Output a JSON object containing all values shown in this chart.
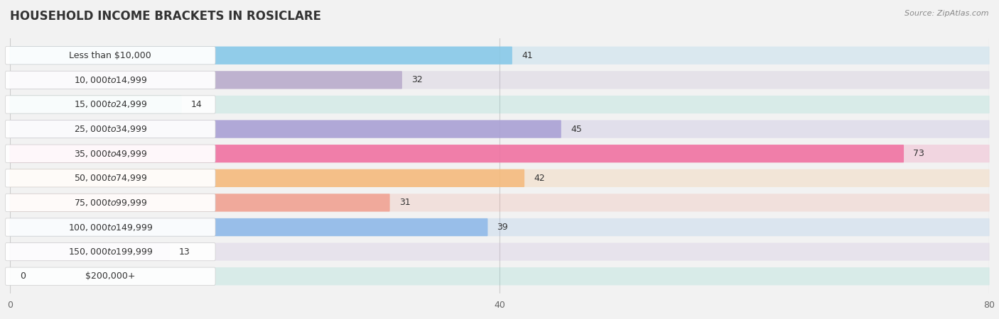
{
  "title": "HOUSEHOLD INCOME BRACKETS IN ROSICLARE",
  "source": "Source: ZipAtlas.com",
  "categories": [
    "Less than $10,000",
    "$10,000 to $14,999",
    "$15,000 to $24,999",
    "$25,000 to $34,999",
    "$35,000 to $49,999",
    "$50,000 to $74,999",
    "$75,000 to $99,999",
    "$100,000 to $149,999",
    "$150,000 to $199,999",
    "$200,000+"
  ],
  "values": [
    41,
    32,
    14,
    45,
    73,
    42,
    31,
    39,
    13,
    0
  ],
  "bar_colors": [
    "#85c8e8",
    "#b8aacb",
    "#7dd5c8",
    "#a89fd4",
    "#f06fa0",
    "#f5b97a",
    "#f0a090",
    "#8db8e8",
    "#c4afd8",
    "#7dd5c8"
  ],
  "bg_colors": [
    "#85c8e8",
    "#b8aacb",
    "#7dd5c8",
    "#a89fd4",
    "#f06fa0",
    "#f5b97a",
    "#f0a090",
    "#8db8e8",
    "#c4afd8",
    "#7dd5c8"
  ],
  "xlim": [
    0,
    80
  ],
  "xticks": [
    0,
    40,
    80
  ],
  "background_color": "#f0f0f0",
  "row_bg_color": "#e8e8e8",
  "bar_bg_alpha": 0.25,
  "title_fontsize": 12,
  "label_fontsize": 9,
  "value_fontsize": 9
}
